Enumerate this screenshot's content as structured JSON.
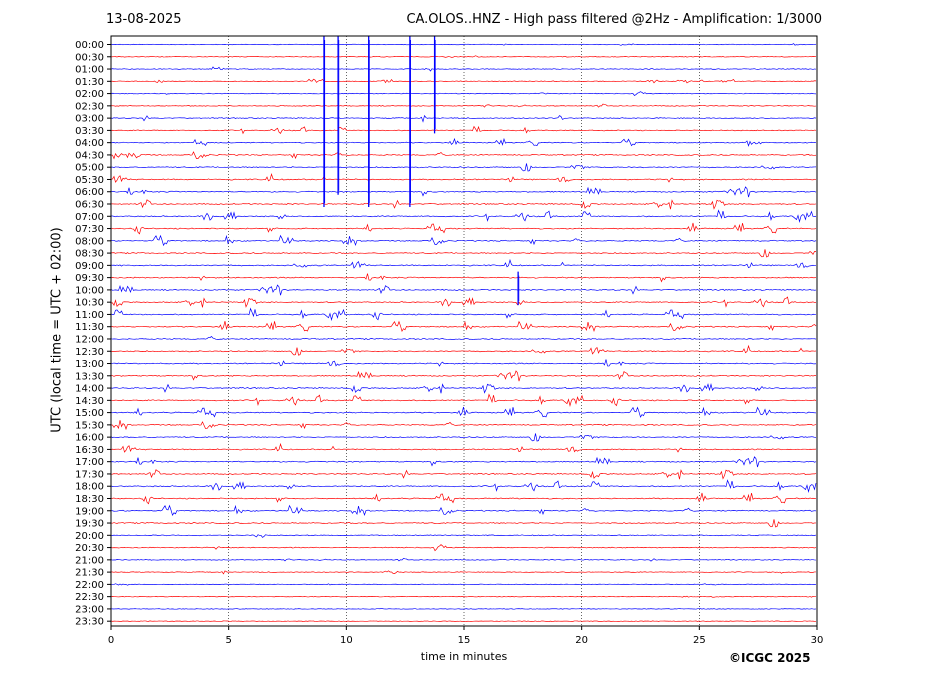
{
  "header": {
    "date": "13-08-2025",
    "title": "CA.OLOS..HNZ - High pass filtered @2Hz - Amplification: 1/3000"
  },
  "footer": {
    "copyright": "©ICGC 2025"
  },
  "chart_data": {
    "type": "line",
    "title": "CA.OLOS..HNZ - High pass filtered @2Hz - Amplification: 1/3000",
    "xlabel": "time in minutes",
    "ylabel": "UTC (local time = UTC + 02:00)",
    "xlim": [
      0,
      30
    ],
    "x_ticks": [
      0,
      5,
      10,
      15,
      20,
      25,
      30
    ],
    "y_tick_labels": [
      "00:00",
      "00:30",
      "01:00",
      "01:30",
      "02:00",
      "02:30",
      "03:00",
      "03:30",
      "04:00",
      "04:30",
      "05:00",
      "05:30",
      "06:00",
      "06:30",
      "07:00",
      "07:30",
      "08:00",
      "08:30",
      "09:00",
      "09:30",
      "10:00",
      "10:30",
      "11:00",
      "11:30",
      "12:00",
      "12:30",
      "13:00",
      "13:30",
      "14:00",
      "14:30",
      "15:00",
      "15:30",
      "16:00",
      "16:30",
      "17:00",
      "17:30",
      "18:00",
      "18:30",
      "19:00",
      "19:30",
      "20:00",
      "20:30",
      "21:00",
      "21:30",
      "22:00",
      "22:30",
      "23:00",
      "23:30"
    ],
    "grid": {
      "x": true,
      "style": "dotted",
      "color": "#000000"
    },
    "trace_colors": [
      "#0000ff",
      "#ff0000"
    ],
    "series": [
      {
        "name": "",
        "events": [
          {
            "minute": 9.05,
            "from": "00:00",
            "to": "06:30"
          },
          {
            "minute": 9.65,
            "from": "00:00",
            "to": "06:00"
          },
          {
            "minute": 10.95,
            "from": "00:00",
            "to": "06:30"
          },
          {
            "minute": 12.7,
            "from": "00:00",
            "to": "06:30"
          },
          {
            "minute": 13.75,
            "from": "00:00",
            "to": "03:30"
          },
          {
            "minute": 17.3,
            "from": "09:30",
            "to": "10:30"
          }
        ]
      }
    ]
  }
}
